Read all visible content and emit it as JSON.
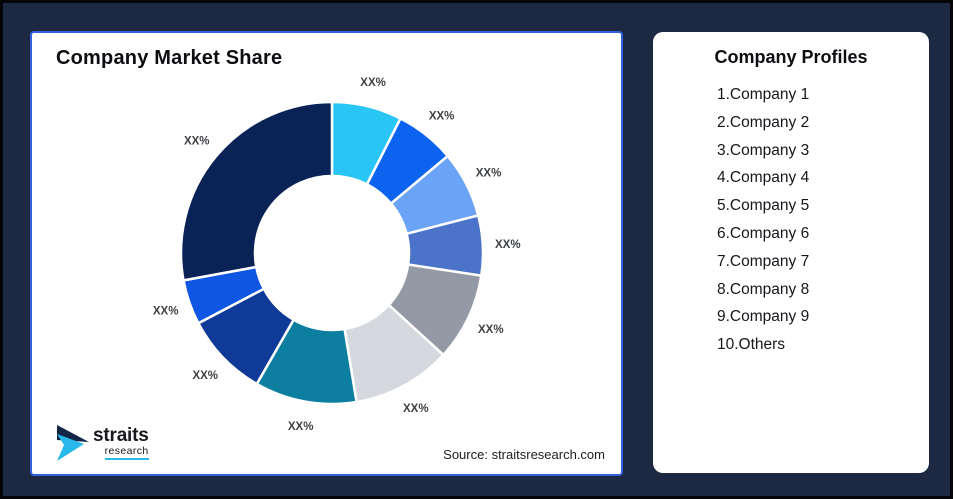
{
  "theme": {
    "background": "#1d2843",
    "frame_border": "#060608",
    "card_border": "#3560dd",
    "title_text": "#0d0e12",
    "label_text": "#3e4144",
    "list_text": "#15171c",
    "source_text": "#1b1d22",
    "logo_text": "#17191d",
    "logo_navy": "#132647",
    "logo_cyan": "#29b8ea"
  },
  "left_card": {
    "title": "Company Market Share",
    "source_text": "Source: straitsresearch.com",
    "logo": {
      "brand": "straits",
      "brand_sub": "research"
    }
  },
  "right_card": {
    "title": "Company Profiles",
    "items": [
      "1.Company 1",
      "2.Company 2",
      "3.Company 3",
      "4.Company 4",
      "5.Company 5",
      "6.Company 6",
      "7.Company 7",
      "8.Company 8",
      "9.Company 9",
      "10.Others"
    ]
  },
  "chart_data": {
    "type": "pie",
    "subtype": "donut",
    "title": "Company Market Share",
    "start_angle_deg": 0,
    "direction": "clockwise",
    "inner_radius_ratio": 0.51,
    "legend": "none",
    "segments": [
      {
        "label": "XX%",
        "value": 7.5,
        "color": "#29c5f5"
      },
      {
        "label": "XX%",
        "value": 6.4,
        "color": "#0b63f0"
      },
      {
        "label": "XX%",
        "value": 7.1,
        "color": "#6ba3f7"
      },
      {
        "label": "XX%",
        "value": 6.4,
        "color": "#4a73c9"
      },
      {
        "label": "XX%",
        "value": 9.4,
        "color": "#9399a5"
      },
      {
        "label": "XX%",
        "value": 10.6,
        "color": "#d5d8de"
      },
      {
        "label": "XX%",
        "value": 10.9,
        "color": "#0c7fa0"
      },
      {
        "label": "XX%",
        "value": 9.0,
        "color": "#0f3a98"
      },
      {
        "label": "XX%",
        "value": 4.8,
        "color": "#0e56e3"
      },
      {
        "label": "XX%",
        "value": 27.9,
        "color": "#0a2357"
      }
    ]
  }
}
